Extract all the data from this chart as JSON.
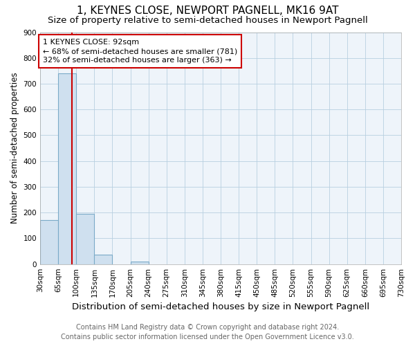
{
  "title": "1, KEYNES CLOSE, NEWPORT PAGNELL, MK16 9AT",
  "subtitle": "Size of property relative to semi-detached houses in Newport Pagnell",
  "xlabel": "Distribution of semi-detached houses by size in Newport Pagnell",
  "ylabel": "Number of semi-detached properties",
  "footer_line1": "Contains HM Land Registry data © Crown copyright and database right 2024.",
  "footer_line2": "Contains public sector information licensed under the Open Government Licence v3.0.",
  "bin_edges": [
    30,
    65,
    100,
    135,
    170,
    205,
    240,
    275,
    310,
    345,
    380,
    415,
    450,
    485,
    520,
    555,
    590,
    625,
    660,
    695,
    730
  ],
  "bar_values": [
    170,
    740,
    195,
    38,
    0,
    10,
    0,
    0,
    0,
    0,
    0,
    0,
    0,
    0,
    0,
    0,
    0,
    0,
    0,
    0
  ],
  "bar_color": "#cfe0ef",
  "bar_edge_color": "#7aaac8",
  "property_size": 92,
  "red_line_color": "#cc0000",
  "annotation_text_line1": "1 KEYNES CLOSE: 92sqm",
  "annotation_text_line2": "← 68% of semi-detached houses are smaller (781)",
  "annotation_text_line3": "32% of semi-detached houses are larger (363) →",
  "annotation_box_color": "#cc0000",
  "ylim": [
    0,
    900
  ],
  "yticks": [
    0,
    100,
    200,
    300,
    400,
    500,
    600,
    700,
    800,
    900
  ],
  "title_fontsize": 11,
  "subtitle_fontsize": 9.5,
  "xlabel_fontsize": 9.5,
  "ylabel_fontsize": 8.5,
  "tick_fontsize": 7.5,
  "annotation_fontsize": 8,
  "footer_fontsize": 7
}
